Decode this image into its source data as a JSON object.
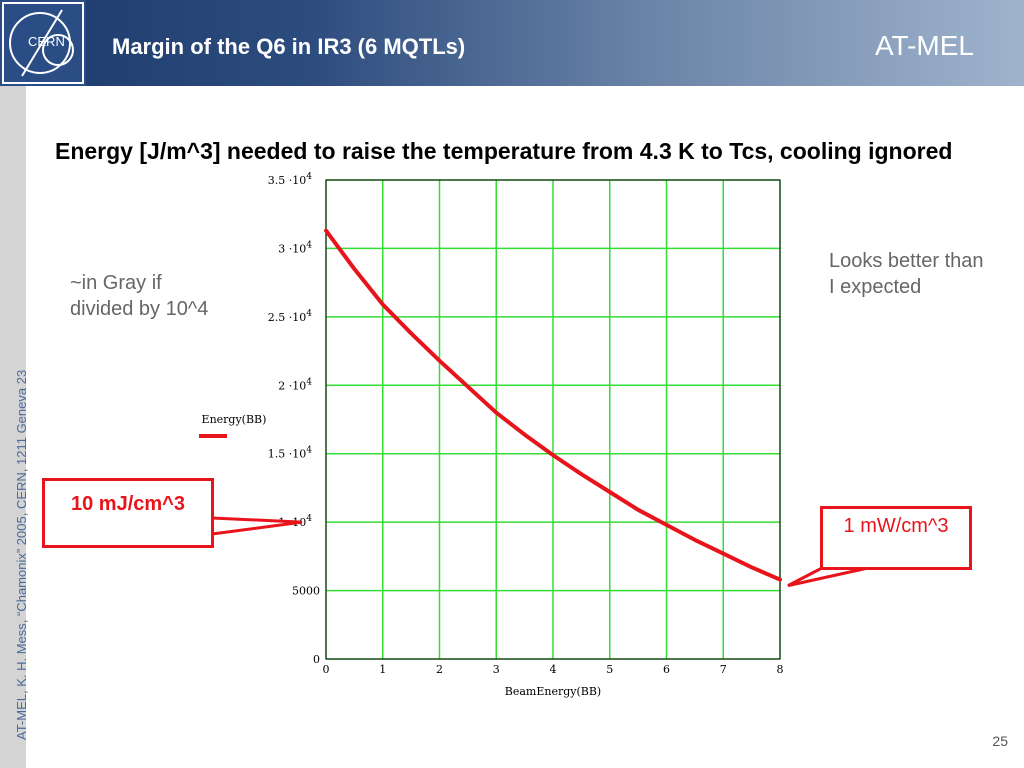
{
  "slide": {
    "title": "Margin of the Q6 in IR3 (6 MQTLs)",
    "brand": "AT-MEL",
    "logo_text": "CERN",
    "sidebar_text": "AT-MEL, K. H. Mess, “Chamonix” 2005, CERN, 1211 Geneva 23",
    "heading": "Energy [J/m^3] needed to raise the temperature from 4.3 K to Tcs, cooling ignored",
    "note_left": "~in Gray if divided by 10^4",
    "note_right": "Looks better than I expected",
    "callout_left": "10 mJ/cm^3",
    "callout_right": "1 mW/cm^3",
    "page_number": "25"
  },
  "colors": {
    "grid": "#33dd33",
    "curve": "#e8141b",
    "callout": "#e8141b",
    "header_dark": "#1c3b6c",
    "header_light": "#9fb3cc"
  },
  "chart_data": {
    "type": "line",
    "xlabel": "BeamEnergy(BB)",
    "ylabel": "Energy(BB)",
    "xlim": [
      0,
      8
    ],
    "ylim": [
      0,
      35000
    ],
    "x_ticks": [
      "0",
      "1",
      "2",
      "3",
      "4",
      "5",
      "6",
      "7",
      "8"
    ],
    "y_ticks": [
      {
        "value": 0,
        "label": "0",
        "exp": ""
      },
      {
        "value": 5000,
        "label": "5000",
        "exp": ""
      },
      {
        "value": 10000,
        "label": "1 ·10",
        "exp": "4"
      },
      {
        "value": 15000,
        "label": "1.5 ·10",
        "exp": "4"
      },
      {
        "value": 20000,
        "label": "2 ·10",
        "exp": "4"
      },
      {
        "value": 25000,
        "label": "2.5 ·10",
        "exp": "4"
      },
      {
        "value": 30000,
        "label": "3 ·10",
        "exp": "4"
      },
      {
        "value": 35000,
        "label": "3.5 ·10",
        "exp": "4"
      }
    ],
    "grid": true,
    "series": [
      {
        "x": [
          0,
          0.5,
          1,
          1.5,
          2,
          2.5,
          3,
          3.5,
          4,
          4.5,
          5,
          5.5,
          6,
          6.5,
          7,
          7.5,
          8
        ],
        "y": [
          31300,
          28500,
          25900,
          23800,
          21800,
          19900,
          18000,
          16400,
          14900,
          13500,
          12200,
          10900,
          9800,
          8700,
          7700,
          6700,
          5800
        ]
      }
    ]
  }
}
